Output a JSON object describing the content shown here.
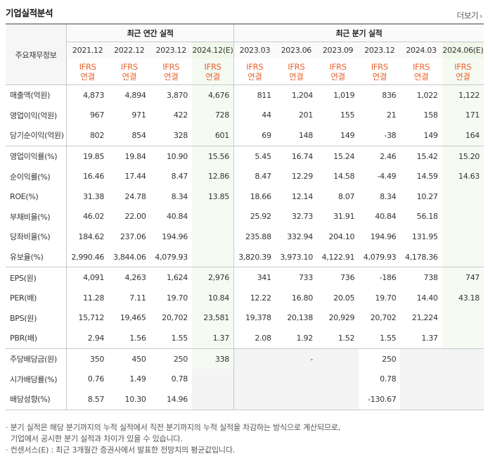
{
  "header": {
    "title": "기업실적분석",
    "more": "더보기"
  },
  "table": {
    "corner_label": "주요재무정보",
    "group_annual": "최근 연간 실적",
    "group_quarter": "최근 분기 실적",
    "periods": [
      "2021.12",
      "2022.12",
      "2023.12",
      "2024.12(E)",
      "2023.03",
      "2023.06",
      "2023.09",
      "2023.12",
      "2024.03",
      "2024.06(E)"
    ],
    "standard_top": "IFRS",
    "standard_bottom": "연결",
    "rows": [
      {
        "label": "매출액(억원)",
        "values": [
          "4,873",
          "4,894",
          "3,870",
          "4,676",
          "811",
          "1,204",
          "1,019",
          "836",
          "1,022",
          "1,122"
        ]
      },
      {
        "label": "영업이익(억원)",
        "values": [
          "967",
          "971",
          "422",
          "728",
          "44",
          "201",
          "155",
          "21",
          "158",
          "171"
        ]
      },
      {
        "label": "당기순이익(억원)",
        "values": [
          "802",
          "854",
          "328",
          "601",
          "69",
          "148",
          "149",
          "-38",
          "149",
          "164"
        ]
      },
      {
        "label": "영업이익률(%)",
        "values": [
          "19.85",
          "19.84",
          "10.90",
          "15.56",
          "5.45",
          "16.74",
          "15.24",
          "2.46",
          "15.42",
          "15.20"
        ]
      },
      {
        "label": "순이익률(%)",
        "values": [
          "16.46",
          "17.44",
          "8.47",
          "12.86",
          "8.47",
          "12.29",
          "14.58",
          "-4.49",
          "14.59",
          "14.63"
        ]
      },
      {
        "label": "ROE(%)",
        "values": [
          "31.38",
          "24.78",
          "8.34",
          "13.85",
          "18.66",
          "12.14",
          "8.07",
          "8.34",
          "10.27",
          ""
        ]
      },
      {
        "label": "부채비율(%)",
        "values": [
          "46.02",
          "22.00",
          "40.84",
          "",
          "25.92",
          "32.73",
          "31.91",
          "40.84",
          "56.18",
          ""
        ]
      },
      {
        "label": "당좌비율(%)",
        "values": [
          "184.62",
          "237.06",
          "194.96",
          "",
          "235.88",
          "332.94",
          "204.10",
          "194.96",
          "131.95",
          ""
        ]
      },
      {
        "label": "유보율(%)",
        "values": [
          "2,990.46",
          "3,844.06",
          "4,079.93",
          "",
          "3,820.39",
          "3,973.10",
          "4,122.91",
          "4,079.93",
          "4,178.36",
          ""
        ]
      },
      {
        "label": "EPS(원)",
        "values": [
          "4,091",
          "4,263",
          "1,624",
          "2,976",
          "341",
          "733",
          "736",
          "-186",
          "738",
          "747"
        ]
      },
      {
        "label": "PER(배)",
        "values": [
          "11.28",
          "7.11",
          "19.70",
          "10.84",
          "12.22",
          "16.80",
          "20.05",
          "19.70",
          "14.40",
          "43.18"
        ]
      },
      {
        "label": "BPS(원)",
        "values": [
          "15,712",
          "19,465",
          "20,702",
          "23,581",
          "19,378",
          "20,138",
          "20,929",
          "20,702",
          "21,224",
          ""
        ]
      },
      {
        "label": "PBR(배)",
        "values": [
          "2.94",
          "1.56",
          "1.55",
          "1.37",
          "2.08",
          "1.92",
          "1.52",
          "1.55",
          "1.37",
          ""
        ]
      },
      {
        "label": "주당배당금(원)",
        "values": [
          "350",
          "450",
          "250",
          "338",
          "",
          "-",
          "",
          "250",
          "",
          ""
        ]
      },
      {
        "label": "시가배당률(%)",
        "values": [
          "0.76",
          "1.49",
          "0.78",
          "",
          "",
          "",
          "",
          "0.78",
          "",
          ""
        ]
      },
      {
        "label": "배당성향(%)",
        "values": [
          "8.57",
          "10.30",
          "14.96",
          "",
          "",
          "",
          "",
          "-130.67",
          "",
          ""
        ]
      }
    ]
  },
  "notes": {
    "line1": "· 분기 실적은 해당 분기까지의 누적 실적에서 직전 분기까지의 누적 실적을 차감하는 방식으로 계산되므로,",
    "line2": "기업에서 공시한 분기 실적과 차이가 있을 수 있습니다.",
    "line3": "· 컨센서스(E) : 최근 3개월간 증권사에서 발표한 전망치의 평균값입니다."
  }
}
